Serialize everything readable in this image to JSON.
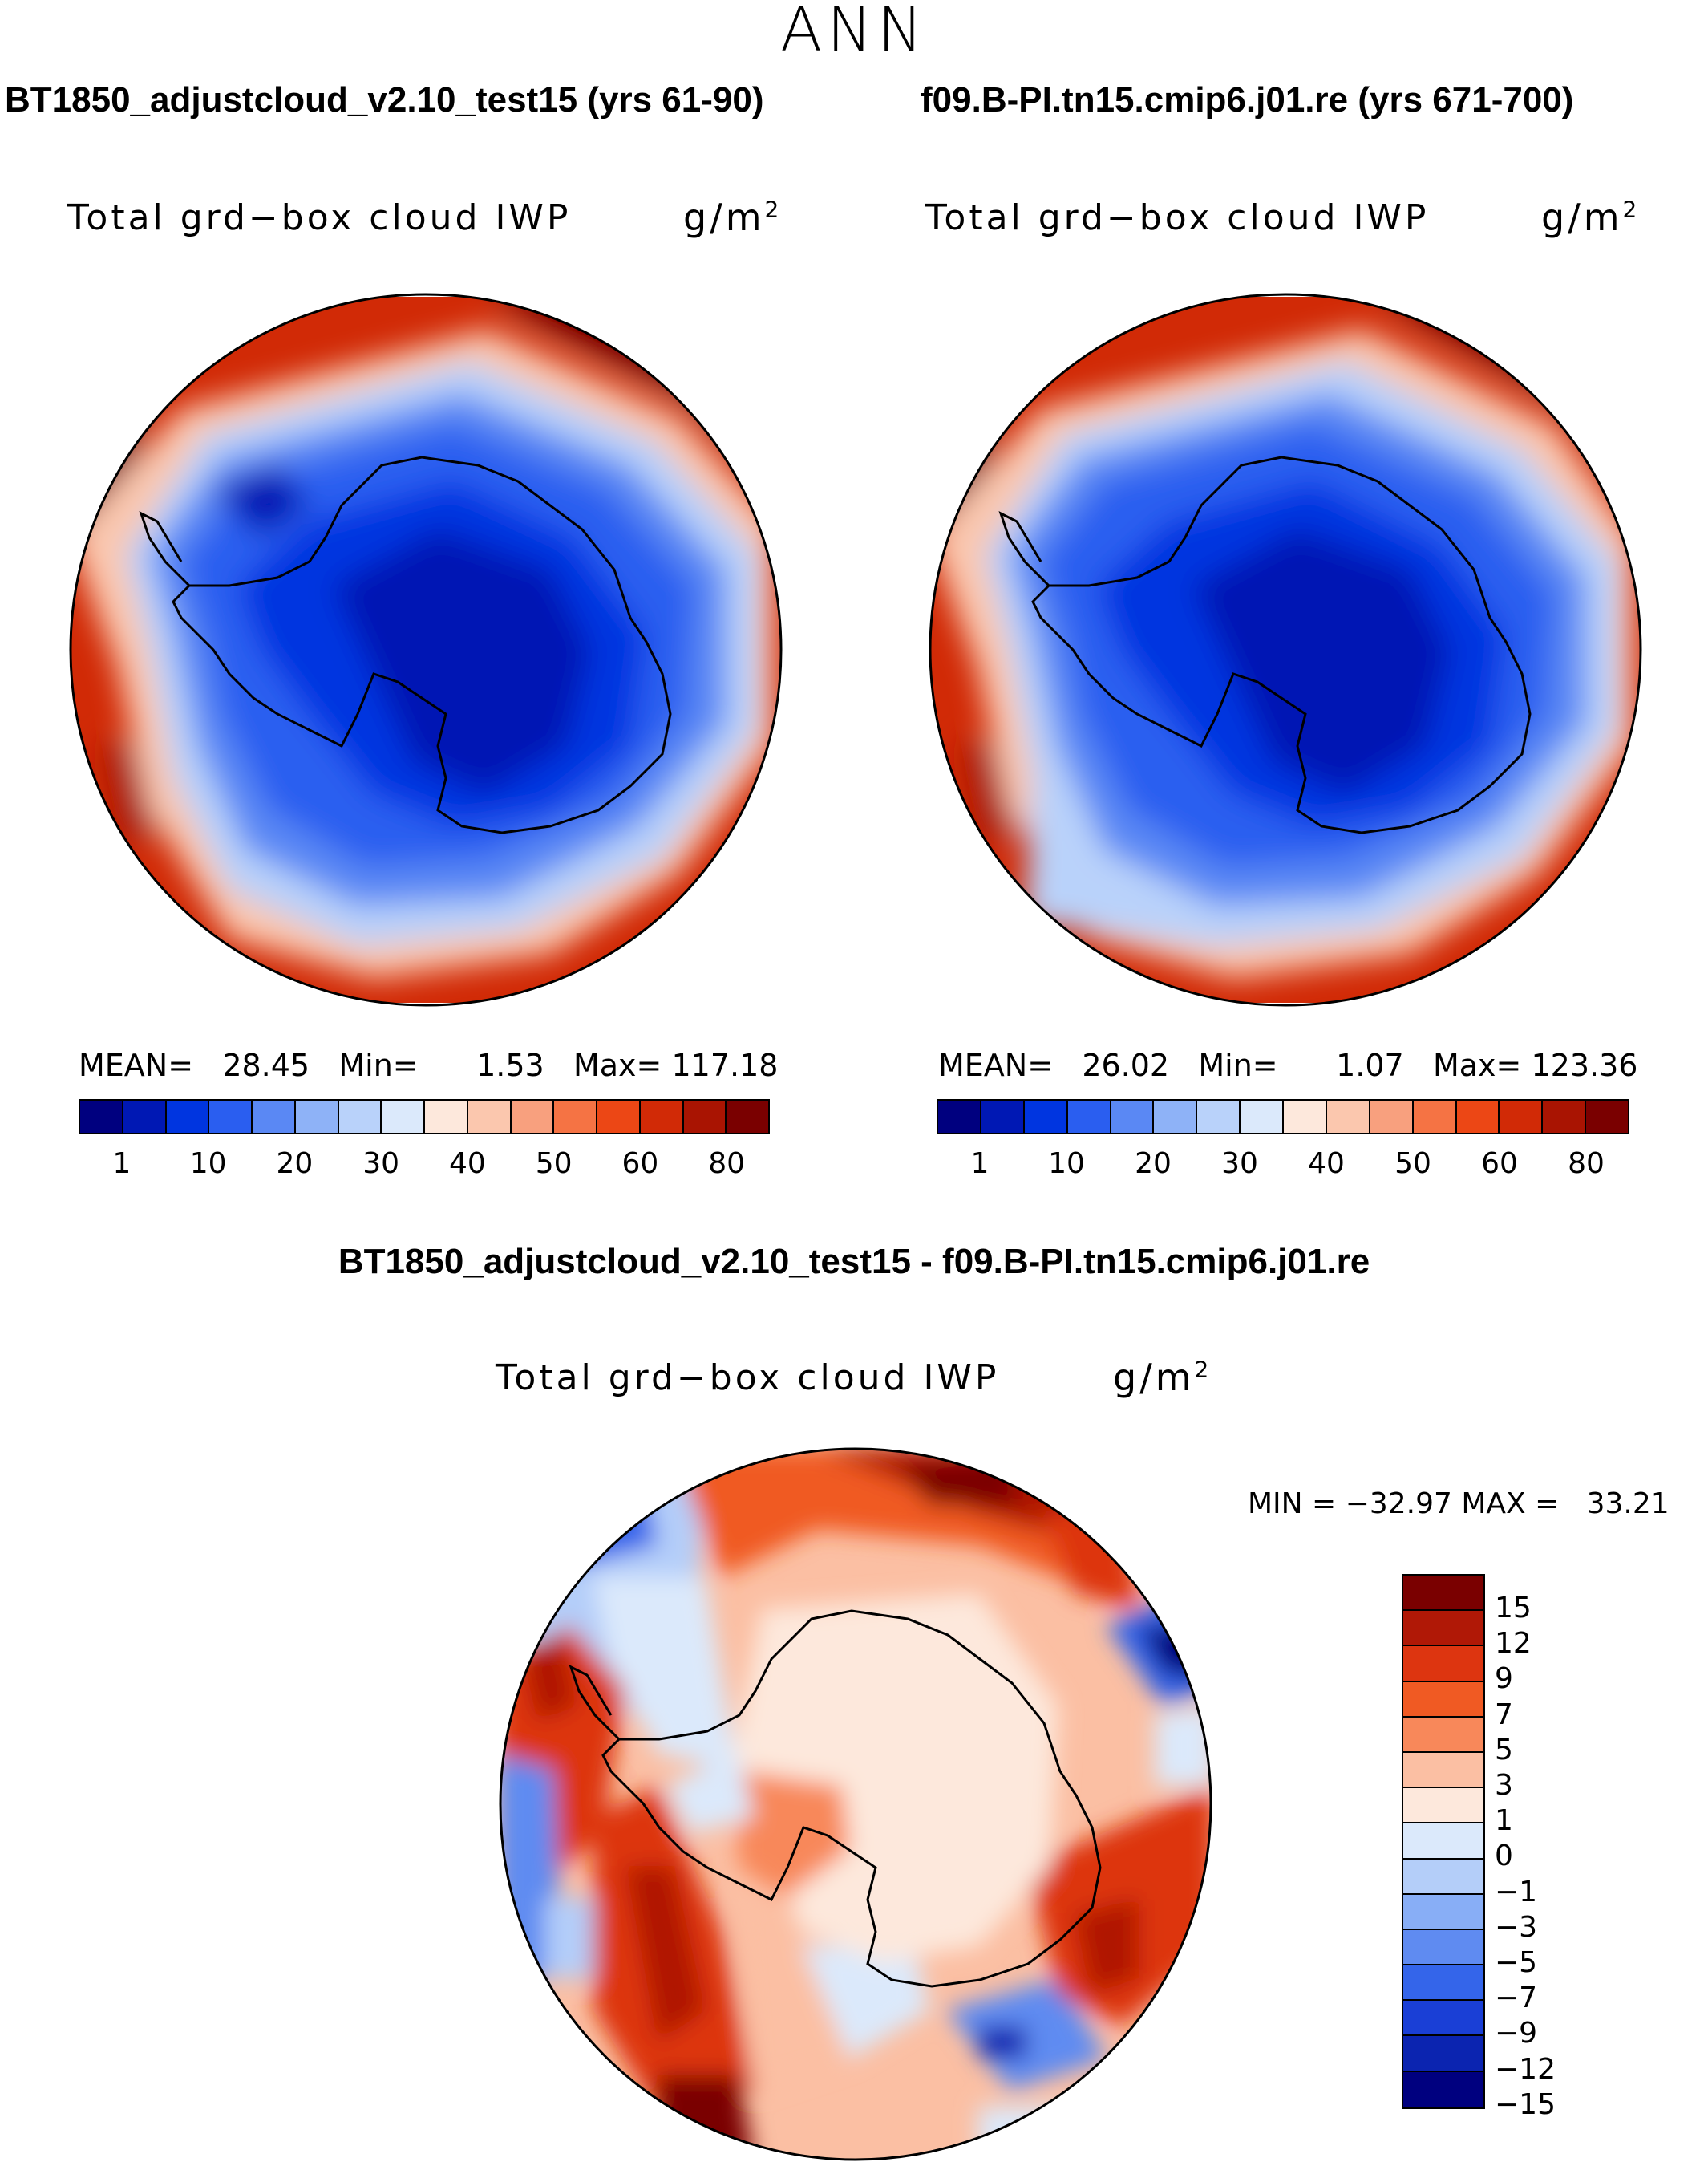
{
  "season": "ANN",
  "panels": [
    {
      "case": "BT1850_adjustcloud_v2.10_test15 (yrs 61-90)",
      "variable": "Total grd−box cloud IWP",
      "units": "g/m",
      "units_exp": "2",
      "stats": {
        "mean_label": "MEAN=",
        "mean": "28.45",
        "min_label": "Min=",
        "min": "1.53",
        "max_label": "Max=",
        "max": "117.18"
      }
    },
    {
      "case": "f09.B-PI.tn15.cmip6.j01.re (yrs 671-700)",
      "variable": "Total grd−box cloud IWP",
      "units": "g/m",
      "units_exp": "2",
      "stats": {
        "mean_label": "MEAN=",
        "mean": "26.02",
        "min_label": "Min=",
        "min": "1.07",
        "max_label": "Max=",
        "max": "123.36"
      }
    }
  ],
  "colorbar": {
    "colors": [
      "#00007f",
      "#0018b4",
      "#0035e0",
      "#2a5ef0",
      "#5a88f4",
      "#8eb2f7",
      "#b9d2fa",
      "#dbe9fb",
      "#fde8dc",
      "#fbc7ae",
      "#f8a07e",
      "#f57344",
      "#ec4715",
      "#d12a06",
      "#a91402",
      "#7a0000"
    ],
    "ticks": [
      "1",
      "10",
      "20",
      "30",
      "40",
      "50",
      "60",
      "80"
    ]
  },
  "diff": {
    "title": "BT1850_adjustcloud_v2.10_test15 - f09.B-PI.tn15.cmip6.j01.re",
    "variable": "Total grd−box cloud IWP",
    "units": "g/m",
    "units_exp": "2",
    "minmax": "MIN = −32.97 MAX =   33.21",
    "colors": [
      "#7a0000",
      "#b01806",
      "#dd3510",
      "#f05a23",
      "#f8885a",
      "#fbbfa3",
      "#fde8dc",
      "#dbe9fb",
      "#b4cef9",
      "#88aef6",
      "#5f8bf1",
      "#3465ea",
      "#1a3fd6",
      "#0b24b0",
      "#00007f"
    ],
    "labels": [
      "15",
      "12",
      "9",
      "7",
      "5",
      "3",
      "1",
      "0",
      "−1",
      "−3",
      "−5",
      "−7",
      "−9",
      "−12",
      "−15"
    ]
  }
}
